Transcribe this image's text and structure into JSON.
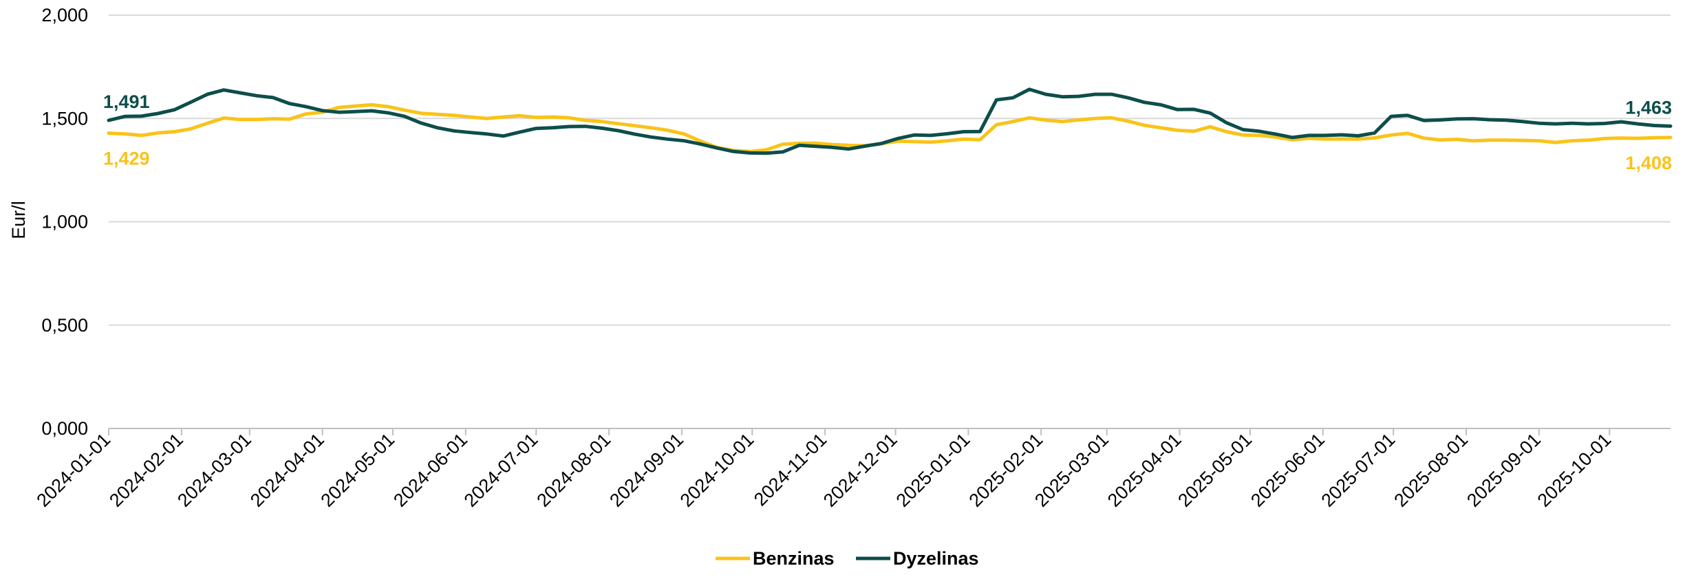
{
  "chart_data": {
    "type": "line",
    "ylabel": "Eur/l",
    "ylim": [
      0,
      2
    ],
    "y_ticks": [
      "0,000",
      "0,500",
      "1,000",
      "1,500",
      "2,000"
    ],
    "y_tick_values": [
      0,
      0.5,
      1,
      1.5,
      2
    ],
    "x_ticks": [
      "2024-01-01",
      "2024-02-01",
      "2024-03-01",
      "2024-04-01",
      "2024-05-01",
      "2024-06-01",
      "2024-07-01",
      "2024-08-01",
      "2024-09-01",
      "2024-10-01",
      "2024-11-01",
      "2024-12-01",
      "2025-01-01",
      "2025-02-01",
      "2025-03-01",
      "2025-04-01",
      "2025-05-01",
      "2025-06-01",
      "2025-07-01",
      "2025-08-01",
      "2025-09-01",
      "2025-10-01"
    ],
    "grid": true,
    "legend_position": "bottom",
    "x": [
      "2024-01-01",
      "2024-01-08",
      "2024-01-15",
      "2024-01-22",
      "2024-01-29",
      "2024-02-05",
      "2024-02-12",
      "2024-02-19",
      "2024-02-26",
      "2024-03-04",
      "2024-03-11",
      "2024-03-18",
      "2024-03-25",
      "2024-04-01",
      "2024-04-08",
      "2024-04-15",
      "2024-04-22",
      "2024-04-29",
      "2024-05-06",
      "2024-05-13",
      "2024-05-20",
      "2024-05-27",
      "2024-06-03",
      "2024-06-10",
      "2024-06-17",
      "2024-06-24",
      "2024-07-01",
      "2024-07-08",
      "2024-07-15",
      "2024-07-22",
      "2024-07-29",
      "2024-08-05",
      "2024-08-12",
      "2024-08-19",
      "2024-08-26",
      "2024-09-02",
      "2024-09-09",
      "2024-09-16",
      "2024-09-23",
      "2024-09-30",
      "2024-10-07",
      "2024-10-14",
      "2024-10-21",
      "2024-10-28",
      "2024-11-04",
      "2024-11-11",
      "2024-11-18",
      "2024-11-25",
      "2024-12-02",
      "2024-12-09",
      "2024-12-16",
      "2024-12-23",
      "2024-12-30",
      "2025-01-06",
      "2025-01-13",
      "2025-01-20",
      "2025-01-27",
      "2025-02-03",
      "2025-02-10",
      "2025-02-17",
      "2025-02-24",
      "2025-03-03",
      "2025-03-10",
      "2025-03-17",
      "2025-03-24",
      "2025-03-31",
      "2025-04-07",
      "2025-04-14",
      "2025-04-21",
      "2025-04-28",
      "2025-05-05",
      "2025-05-12",
      "2025-05-19",
      "2025-05-26",
      "2025-06-02",
      "2025-06-09",
      "2025-06-16",
      "2025-06-23",
      "2025-06-30",
      "2025-07-07",
      "2025-07-14",
      "2025-07-21",
      "2025-07-28",
      "2025-08-04",
      "2025-08-11",
      "2025-08-18",
      "2025-08-25",
      "2025-09-01",
      "2025-09-08",
      "2025-09-15",
      "2025-09-22",
      "2025-09-29",
      "2025-10-06",
      "2025-10-13",
      "2025-10-20",
      "2025-10-27"
    ],
    "series": [
      {
        "name": "Benzinas",
        "color": "#f9c319",
        "end_label_first": "1,429",
        "end_label_last": "1,408",
        "values": [
          1.429,
          1.425,
          1.418,
          1.43,
          1.436,
          1.45,
          1.477,
          1.502,
          1.495,
          1.495,
          1.499,
          1.497,
          1.522,
          1.53,
          1.553,
          1.56,
          1.566,
          1.557,
          1.54,
          1.525,
          1.52,
          1.515,
          1.507,
          1.5,
          1.507,
          1.513,
          1.505,
          1.507,
          1.503,
          1.491,
          1.485,
          1.475,
          1.465,
          1.455,
          1.443,
          1.425,
          1.39,
          1.36,
          1.345,
          1.34,
          1.348,
          1.375,
          1.38,
          1.38,
          1.374,
          1.37,
          1.368,
          1.378,
          1.39,
          1.388,
          1.385,
          1.392,
          1.4,
          1.397,
          1.47,
          1.485,
          1.503,
          1.492,
          1.485,
          1.493,
          1.5,
          1.503,
          1.487,
          1.467,
          1.455,
          1.443,
          1.438,
          1.46,
          1.436,
          1.42,
          1.418,
          1.41,
          1.397,
          1.404,
          1.4,
          1.401,
          1.4,
          1.406,
          1.42,
          1.428,
          1.405,
          1.396,
          1.399,
          1.392,
          1.395,
          1.395,
          1.394,
          1.392,
          1.384,
          1.392,
          1.395,
          1.403,
          1.405,
          1.404,
          1.407,
          1.408
        ]
      },
      {
        "name": "Dyzelinas",
        "color": "#0d4e4a",
        "end_label_first": "1,491",
        "end_label_last": "1,463",
        "values": [
          1.491,
          1.51,
          1.511,
          1.524,
          1.542,
          1.579,
          1.617,
          1.638,
          1.624,
          1.61,
          1.601,
          1.572,
          1.557,
          1.538,
          1.53,
          1.533,
          1.537,
          1.527,
          1.51,
          1.478,
          1.455,
          1.44,
          1.432,
          1.425,
          1.415,
          1.434,
          1.452,
          1.455,
          1.461,
          1.462,
          1.453,
          1.441,
          1.424,
          1.41,
          1.4,
          1.392,
          1.376,
          1.357,
          1.34,
          1.333,
          1.332,
          1.338,
          1.37,
          1.365,
          1.36,
          1.352,
          1.366,
          1.379,
          1.403,
          1.42,
          1.418,
          1.426,
          1.436,
          1.437,
          1.59,
          1.6,
          1.641,
          1.617,
          1.605,
          1.607,
          1.617,
          1.617,
          1.6,
          1.578,
          1.566,
          1.543,
          1.544,
          1.526,
          1.479,
          1.446,
          1.438,
          1.424,
          1.408,
          1.418,
          1.418,
          1.421,
          1.416,
          1.43,
          1.51,
          1.515,
          1.49,
          1.493,
          1.498,
          1.499,
          1.494,
          1.492,
          1.485,
          1.477,
          1.474,
          1.477,
          1.474,
          1.476,
          1.484,
          1.474,
          1.466,
          1.463
        ]
      }
    ]
  }
}
